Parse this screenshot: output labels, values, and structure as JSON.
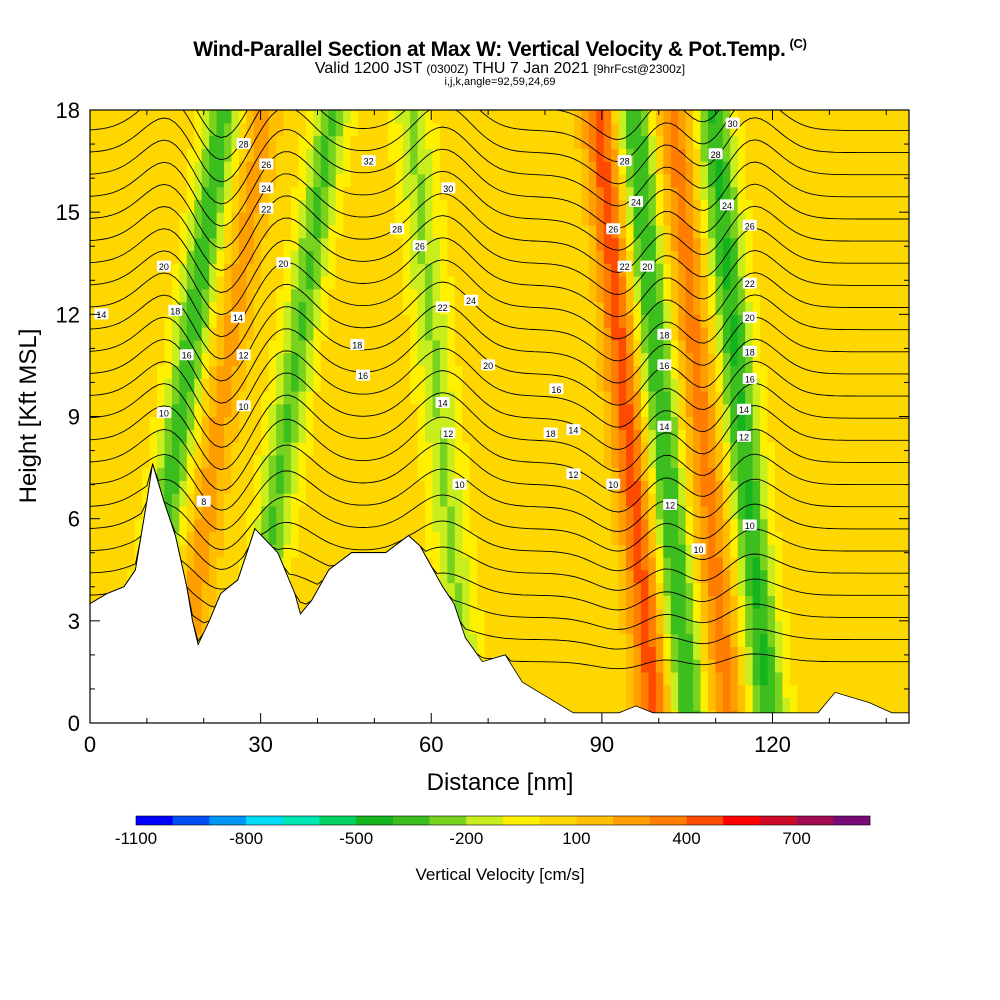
{
  "header": {
    "title": "Wind-Parallel Section at Max W: Vertical Velocity & Pot.Temp.",
    "copyright": "(C)",
    "valid_prefix": "Valid 1200 JST",
    "valid_utc": "(0300Z)",
    "valid_date": "THU 7 Jan 2021",
    "forecast": "[9hrFcst@2300z]",
    "indices": "i,j,k,angle=92,59,24,69"
  },
  "chart_data": {
    "type": "heatmap",
    "title": "Wind-Parallel Section at Max W: Vertical Velocity & Pot.Temp.",
    "xlabel": "Distance [nm]",
    "ylabel": "Height [Kft MSL]",
    "xlim": [
      0,
      144
    ],
    "ylim": [
      0,
      18
    ],
    "x_ticks": [
      0,
      30,
      60,
      90,
      120
    ],
    "y_ticks": [
      0,
      3,
      6,
      9,
      12,
      15,
      18
    ],
    "colorbar": {
      "title": "Vertical Velocity [cm/s]",
      "min": -1100,
      "max": 900,
      "step": 100,
      "labels": [
        -1100,
        -800,
        -500,
        -200,
        100,
        400,
        700
      ],
      "colors": [
        "#0000ff",
        "#0050f5",
        "#0096f5",
        "#00dcf5",
        "#00e6b4",
        "#00d264",
        "#14b41e",
        "#3cbe1e",
        "#78d21e",
        "#c8ee1e",
        "#fff000",
        "#ffd700",
        "#ffbe00",
        "#ff9e00",
        "#ff7d00",
        "#ff4b00",
        "#ff0000",
        "#cd0a28",
        "#a00a50",
        "#780a78"
      ]
    },
    "terrain_kft": [
      [
        0,
        3.5
      ],
      [
        3,
        3.8
      ],
      [
        6,
        4.0
      ],
      [
        8,
        4.5
      ],
      [
        10,
        6.5
      ],
      [
        11,
        7.6
      ],
      [
        13,
        6.5
      ],
      [
        15,
        5.5
      ],
      [
        17,
        4.0
      ],
      [
        18,
        3.0
      ],
      [
        19,
        2.3
      ],
      [
        21,
        3.0
      ],
      [
        23,
        3.8
      ],
      [
        26,
        4.2
      ],
      [
        28,
        5.2
      ],
      [
        29,
        5.7
      ],
      [
        33,
        5.0
      ],
      [
        36,
        3.8
      ],
      [
        37,
        3.2
      ],
      [
        39,
        3.6
      ],
      [
        42,
        4.5
      ],
      [
        46,
        5.0
      ],
      [
        52,
        5.0
      ],
      [
        56,
        5.5
      ],
      [
        58,
        5.2
      ],
      [
        62,
        4.0
      ],
      [
        64,
        3.5
      ],
      [
        66,
        2.5
      ],
      [
        69,
        1.8
      ],
      [
        73,
        2.0
      ],
      [
        76,
        1.2
      ],
      [
        81,
        0.7
      ],
      [
        85,
        0.3
      ],
      [
        93,
        0.3
      ],
      [
        96,
        0.5
      ],
      [
        99,
        0.3
      ],
      [
        128,
        0.3
      ],
      [
        131,
        0.9
      ],
      [
        137,
        0.6
      ],
      [
        141,
        0.3
      ],
      [
        144,
        0.3
      ]
    ],
    "w_features_cm_s": [
      {
        "x": 15,
        "w": -400
      },
      {
        "x": 22,
        "w": 200
      },
      {
        "x": 34,
        "w": -350
      },
      {
        "x": 62,
        "w": -250
      },
      {
        "x": 95,
        "w": 400
      },
      {
        "x": 101,
        "w": -450
      },
      {
        "x": 108,
        "w": 300
      },
      {
        "x": 115,
        "w": -450
      }
    ],
    "theta_contour_labels": [
      {
        "value": 28,
        "x": 27,
        "y": 17.0
      },
      {
        "value": 26,
        "x": 31,
        "y": 16.4
      },
      {
        "value": 24,
        "x": 31,
        "y": 15.7
      },
      {
        "value": 22,
        "x": 31,
        "y": 15.1
      },
      {
        "value": 20,
        "x": 13,
        "y": 13.4
      },
      {
        "value": 20,
        "x": 34,
        "y": 13.5
      },
      {
        "value": 18,
        "x": 15,
        "y": 12.1
      },
      {
        "value": 16,
        "x": 17,
        "y": 10.8
      },
      {
        "value": 14,
        "x": 26,
        "y": 11.9
      },
      {
        "value": 12,
        "x": 27,
        "y": 10.8
      },
      {
        "value": 10,
        "x": 13,
        "y": 9.1
      },
      {
        "value": 10,
        "x": 27,
        "y": 9.3
      },
      {
        "value": 8,
        "x": 20,
        "y": 6.5
      },
      {
        "value": 32,
        "x": 49,
        "y": 16.5
      },
      {
        "value": 30,
        "x": 63,
        "y": 15.7
      },
      {
        "value": 28,
        "x": 54,
        "y": 14.5
      },
      {
        "value": 26,
        "x": 58,
        "y": 14.0
      },
      {
        "value": 24,
        "x": 67,
        "y": 12.4
      },
      {
        "value": 22,
        "x": 62,
        "y": 12.2
      },
      {
        "value": 20,
        "x": 70,
        "y": 10.5
      },
      {
        "value": 18,
        "x": 47,
        "y": 11.1
      },
      {
        "value": 16,
        "x": 48,
        "y": 10.2
      },
      {
        "value": 14,
        "x": 62,
        "y": 9.4
      },
      {
        "value": 12,
        "x": 63,
        "y": 8.5
      },
      {
        "value": 10,
        "x": 65,
        "y": 7.0
      },
      {
        "value": 16,
        "x": 82,
        "y": 9.8
      },
      {
        "value": 18,
        "x": 81,
        "y": 8.5
      },
      {
        "value": 14,
        "x": 85,
        "y": 8.6
      },
      {
        "value": 12,
        "x": 85,
        "y": 7.3
      },
      {
        "value": 10,
        "x": 92,
        "y": 7.0
      },
      {
        "value": 28,
        "x": 94,
        "y": 16.5
      },
      {
        "value": 24,
        "x": 96,
        "y": 15.3
      },
      {
        "value": 26,
        "x": 92,
        "y": 14.5
      },
      {
        "value": 22,
        "x": 94,
        "y": 13.4
      },
      {
        "value": 20,
        "x": 98,
        "y": 13.4
      },
      {
        "value": 18,
        "x": 101,
        "y": 11.4
      },
      {
        "value": 16,
        "x": 101,
        "y": 10.5
      },
      {
        "value": 14,
        "x": 101,
        "y": 8.7
      },
      {
        "value": 12,
        "x": 102,
        "y": 6.4
      },
      {
        "value": 10,
        "x": 107,
        "y": 5.1
      },
      {
        "value": 30,
        "x": 113,
        "y": 17.6
      },
      {
        "value": 28,
        "x": 110,
        "y": 16.7
      },
      {
        "value": 24,
        "x": 112,
        "y": 15.2
      },
      {
        "value": 26,
        "x": 116,
        "y": 14.6
      },
      {
        "value": 22,
        "x": 116,
        "y": 12.9
      },
      {
        "value": 20,
        "x": 116,
        "y": 11.9
      },
      {
        "value": 18,
        "x": 116,
        "y": 10.9
      },
      {
        "value": 16,
        "x": 116,
        "y": 10.1
      },
      {
        "value": 14,
        "x": 115,
        "y": 9.2
      },
      {
        "value": 12,
        "x": 115,
        "y": 8.4
      },
      {
        "value": 10,
        "x": 116,
        "y": 5.8
      },
      {
        "value": 14,
        "x": 2,
        "y": 12.0
      }
    ]
  }
}
